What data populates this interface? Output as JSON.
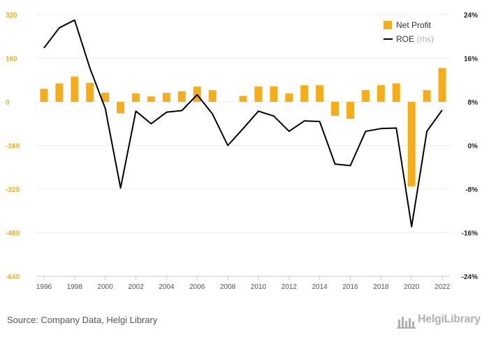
{
  "chart_data": {
    "type": "bar",
    "categories": [
      "1996",
      "1997",
      "1998",
      "1999",
      "2000",
      "2001",
      "2002",
      "2003",
      "2004",
      "2005",
      "2006",
      "2007",
      "2008",
      "2009",
      "2010",
      "2011",
      "2012",
      "2013",
      "2014",
      "2015",
      "2016",
      "2017",
      "2018",
      "2019",
      "2020",
      "2021",
      "2022"
    ],
    "x_tick_labels": [
      "1996",
      "1998",
      "2000",
      "2002",
      "2004",
      "2006",
      "2008",
      "2010",
      "2012",
      "2014",
      "2016",
      "2018",
      "2020",
      "2022"
    ],
    "series": [
      {
        "name": "Net Profit",
        "type": "bar",
        "axis": "left",
        "color": "#f5ae1a",
        "values": [
          48,
          68,
          93,
          70,
          34,
          -42,
          31,
          20,
          33,
          39,
          56,
          43,
          0,
          22,
          56,
          57,
          31,
          61,
          61,
          -51,
          -62,
          43,
          61,
          68,
          -310,
          43,
          124
        ]
      },
      {
        "name": "ROE",
        "name_suffix": "(rhs)",
        "type": "line",
        "axis": "right",
        "color": "#000000",
        "values": [
          17.9,
          21.6,
          23.0,
          14.2,
          6.8,
          -7.8,
          6.3,
          4.0,
          6.1,
          6.4,
          9.3,
          5.8,
          0.0,
          3.1,
          6.3,
          5.4,
          2.6,
          4.5,
          4.4,
          -3.4,
          -3.7,
          2.6,
          3.1,
          3.2,
          -14.9,
          2.6,
          6.5
        ]
      }
    ],
    "left_axis": {
      "min": -640,
      "max": 320,
      "ticks": [
        "320",
        "160",
        "0",
        "-160",
        "-320",
        "-480",
        "-640"
      ],
      "color": "#f5ae1a"
    },
    "right_axis": {
      "min": -24,
      "max": 24,
      "ticks": [
        "24%",
        "16%",
        "8%",
        "0%",
        "-8%",
        "-16%",
        "-24%"
      ]
    },
    "legend": {
      "position": "top-right"
    },
    "grid": true
  },
  "footer": {
    "source": "Source: Company Data, Helgi Library",
    "logo": "HelgiLibrary"
  }
}
